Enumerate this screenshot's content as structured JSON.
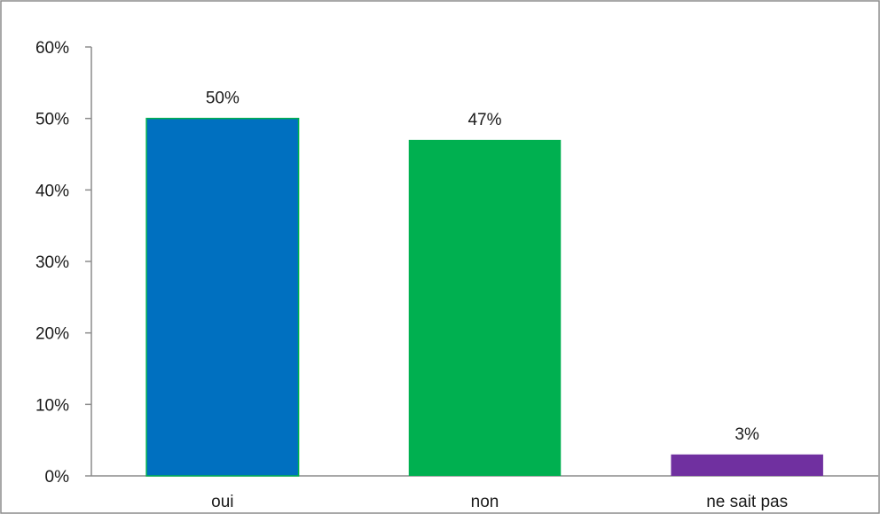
{
  "chart_data": {
    "type": "bar",
    "title": "",
    "xlabel": "",
    "ylabel": "",
    "categories": [
      "oui",
      "non",
      "ne sait pas"
    ],
    "values": [
      50,
      47,
      3
    ],
    "data_labels": [
      "50%",
      "47%",
      "3%"
    ],
    "colors": [
      "#0070c0",
      "#00b050",
      "#7030a0"
    ],
    "bar_border_color": "#00b050",
    "ylim": [
      0,
      60
    ],
    "yticks": [
      0,
      10,
      20,
      30,
      40,
      50,
      60
    ],
    "ytick_labels": [
      "0%",
      "10%",
      "20%",
      "30%",
      "40%",
      "50%",
      "60%"
    ],
    "grid": false,
    "legend": "none"
  }
}
